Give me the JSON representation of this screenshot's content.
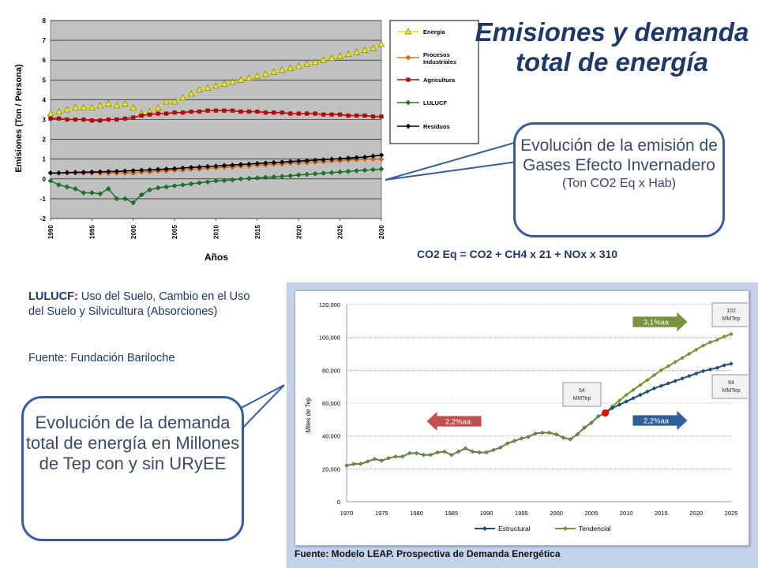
{
  "title": "Emisiones y demanda total de energía",
  "callout_emissions": {
    "main": "Evolución de la emisión de Gases Efecto Invernadero",
    "sub": "(Ton CO2 Eq x Hab)"
  },
  "callout_demand": "Evolución de la demanda total de energía en Millones de Tep con y sin URyEE",
  "formula": "CO2 Eq  = CO2 + CH4 x 21 + NOx x 310",
  "lulucf_term": "LULUCF:",
  "lulucf_definition": " Uso del Suelo, Cambio en el Uso del Suelo y Silvicultura (Absorciones)",
  "source_left": "Fuente: Fundación Bariloche",
  "source_bottom": "Fuente: Modelo LEAP. Prospectiva de Demanda Energética",
  "colors": {
    "energia": "#e8e84a",
    "procesos": "#e87020",
    "agricultura": "#c00000",
    "lulucf": "#1e7a2e",
    "residuos": "#000000",
    "estructural": "#1f4e79",
    "tendencial": "#77933c",
    "plot_bg": "#c0c0c0",
    "arrow_red": "#c0504d",
    "arrow_green": "#77933c",
    "arrow_blue": "#2e5f9a"
  },
  "chart_data": [
    {
      "type": "line",
      "xlabel": "Años",
      "ylabel": "Emisiones (Ton / Persona)",
      "xlim": [
        1990,
        2030
      ],
      "ylim": [
        -2,
        8
      ],
      "x_ticks": [
        "1990",
        "1995",
        "2000",
        "2005",
        "2010",
        "2015",
        "2020",
        "2025",
        "2030"
      ],
      "y_ticks": [
        "-2",
        "-1",
        "0",
        "1",
        "2",
        "3",
        "4",
        "5",
        "6",
        "7",
        "8"
      ],
      "grid": true,
      "legend": "right",
      "x": [
        1990,
        1991,
        1992,
        1993,
        1994,
        1995,
        1996,
        1997,
        1998,
        1999,
        2000,
        2001,
        2002,
        2003,
        2004,
        2005,
        2006,
        2007,
        2008,
        2009,
        2010,
        2011,
        2012,
        2013,
        2014,
        2015,
        2016,
        2017,
        2018,
        2019,
        2020,
        2021,
        2022,
        2023,
        2024,
        2025,
        2026,
        2027,
        2028,
        2029,
        2030
      ],
      "series": [
        {
          "name": "Energía",
          "marker": "triangle",
          "values": [
            3.3,
            3.4,
            3.5,
            3.6,
            3.6,
            3.6,
            3.7,
            3.8,
            3.7,
            3.8,
            3.6,
            3.3,
            3.4,
            3.6,
            3.9,
            3.9,
            4.1,
            4.3,
            4.5,
            4.6,
            4.7,
            4.8,
            4.9,
            5.0,
            5.1,
            5.2,
            5.3,
            5.4,
            5.5,
            5.6,
            5.7,
            5.8,
            5.9,
            6.0,
            6.1,
            6.2,
            6.3,
            6.4,
            6.5,
            6.6,
            6.8
          ]
        },
        {
          "name": "Procesos Industriales",
          "marker": "diamond",
          "values": [
            0.3,
            0.3,
            0.3,
            0.3,
            0.3,
            0.3,
            0.3,
            0.3,
            0.3,
            0.3,
            0.3,
            0.35,
            0.35,
            0.4,
            0.4,
            0.45,
            0.45,
            0.5,
            0.5,
            0.55,
            0.55,
            0.6,
            0.6,
            0.65,
            0.65,
            0.7,
            0.7,
            0.75,
            0.75,
            0.8,
            0.8,
            0.82,
            0.85,
            0.87,
            0.9,
            0.92,
            0.95,
            0.97,
            1.0,
            1.0,
            1.0
          ]
        },
        {
          "name": "Agricultura",
          "marker": "square",
          "values": [
            3.05,
            3.05,
            3.0,
            3.0,
            3.0,
            2.95,
            2.95,
            3.0,
            3.0,
            3.05,
            3.1,
            3.2,
            3.25,
            3.3,
            3.3,
            3.35,
            3.35,
            3.4,
            3.4,
            3.45,
            3.45,
            3.45,
            3.45,
            3.4,
            3.4,
            3.4,
            3.35,
            3.35,
            3.35,
            3.3,
            3.3,
            3.3,
            3.3,
            3.25,
            3.25,
            3.25,
            3.2,
            3.2,
            3.2,
            3.15,
            3.15
          ]
        },
        {
          "name": "LULUCF",
          "marker": "diamond",
          "values": [
            -0.1,
            -0.3,
            -0.4,
            -0.5,
            -0.7,
            -0.7,
            -0.75,
            -0.5,
            -1.0,
            -1.0,
            -1.2,
            -0.8,
            -0.55,
            -0.45,
            -0.4,
            -0.35,
            -0.3,
            -0.25,
            -0.2,
            -0.15,
            -0.1,
            -0.08,
            -0.05,
            0.0,
            0.02,
            0.05,
            0.08,
            0.1,
            0.13,
            0.16,
            0.2,
            0.23,
            0.26,
            0.29,
            0.32,
            0.35,
            0.38,
            0.41,
            0.44,
            0.47,
            0.5
          ]
        },
        {
          "name": "Residuos",
          "marker": "diamond",
          "values": [
            0.3,
            0.3,
            0.32,
            0.33,
            0.34,
            0.35,
            0.36,
            0.37,
            0.38,
            0.4,
            0.42,
            0.44,
            0.46,
            0.48,
            0.5,
            0.52,
            0.55,
            0.58,
            0.6,
            0.63,
            0.65,
            0.68,
            0.7,
            0.73,
            0.75,
            0.78,
            0.8,
            0.83,
            0.85,
            0.88,
            0.9,
            0.92,
            0.95,
            0.97,
            1.0,
            1.02,
            1.05,
            1.08,
            1.1,
            1.15,
            1.2
          ]
        }
      ]
    },
    {
      "type": "line",
      "xlabel": "",
      "ylabel": "Miles de Tep",
      "xlim": [
        1970,
        2025
      ],
      "ylim": [
        0,
        120000
      ],
      "x_ticks": [
        "1970",
        "1975",
        "1980",
        "1985",
        "1990",
        "1995",
        "2000",
        "2005",
        "2010",
        "2015",
        "2020",
        "2025"
      ],
      "y_ticks": [
        "0",
        "20,000",
        "40,000",
        "60,000",
        "80,000",
        "100,000",
        "120,000"
      ],
      "grid": true,
      "legend": "bottom",
      "x_hist": [
        1970,
        1971,
        1972,
        1973,
        1974,
        1975,
        1976,
        1977,
        1978,
        1979,
        1980,
        1981,
        1982,
        1983,
        1984,
        1985,
        1986,
        1987,
        1988,
        1989,
        1990,
        1991,
        1992,
        1993,
        1994,
        1995,
        1996,
        1997,
        1998,
        1999,
        2000,
        2001,
        2002,
        2003,
        2004,
        2005,
        2006,
        2007
      ],
      "hist_values": [
        22000,
        23000,
        23000,
        24500,
        26000,
        25000,
        26500,
        27500,
        27500,
        29500,
        29500,
        28500,
        28500,
        30000,
        30500,
        28500,
        30500,
        32500,
        30500,
        30000,
        30000,
        31500,
        33000,
        35500,
        37000,
        38500,
        39500,
        41500,
        42000,
        42000,
        41000,
        39000,
        38000,
        41000,
        45000,
        48000,
        52000,
        54000
      ],
      "x_proj": [
        2007,
        2008,
        2009,
        2010,
        2011,
        2012,
        2013,
        2014,
        2015,
        2016,
        2017,
        2018,
        2019,
        2020,
        2021,
        2022,
        2023,
        2024,
        2025
      ],
      "series": [
        {
          "name": "Estructural",
          "values": [
            54000,
            57000,
            59000,
            61000,
            63000,
            65000,
            67000,
            69000,
            70500,
            72000,
            73500,
            75000,
            76500,
            78000,
            79500,
            80500,
            81500,
            83000,
            84000
          ]
        },
        {
          "name": "Tendencial",
          "values": [
            54000,
            58000,
            61500,
            65000,
            68000,
            71000,
            74000,
            77000,
            80000,
            82500,
            85000,
            87500,
            90000,
            92500,
            95000,
            97000,
            98500,
            100500,
            102000
          ]
        }
      ],
      "annotations": [
        {
          "label": "54 MMTep",
          "x": 2007,
          "y": 54000
        },
        {
          "label": "102 MMTep",
          "x": 2025,
          "y": 102000
        },
        {
          "label": "84 MMTep",
          "x": 2025,
          "y": 84000
        },
        {
          "label": "2,2%aa",
          "kind": "arrow-left",
          "color": "red"
        },
        {
          "label": "3,1%aa",
          "kind": "arrow-right",
          "color": "green"
        },
        {
          "label": "2,2%aa",
          "kind": "arrow-right",
          "color": "blue"
        }
      ]
    }
  ]
}
